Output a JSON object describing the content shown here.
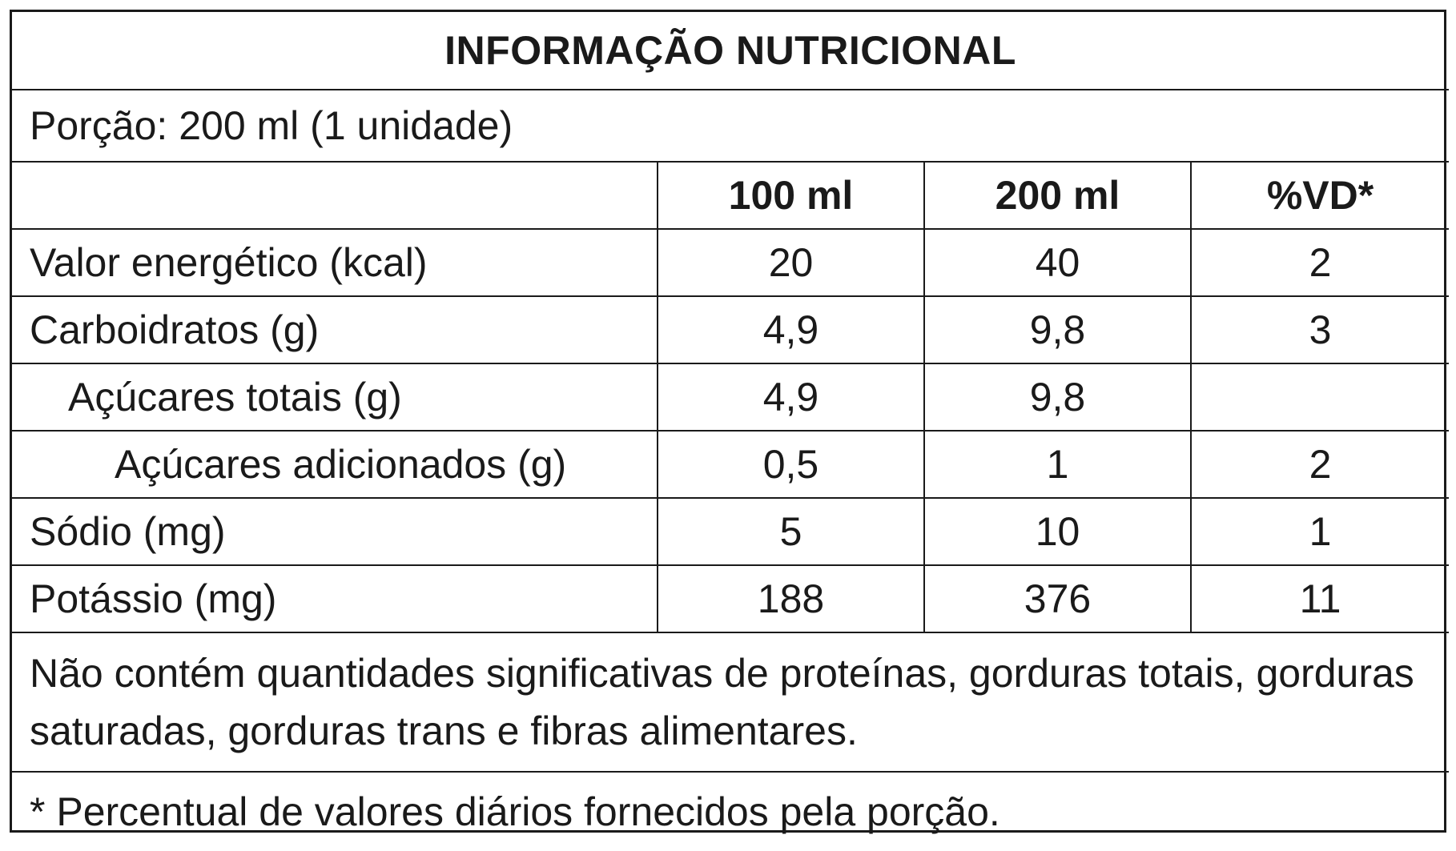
{
  "label": {
    "title": "INFORMAÇÃO NUTRICIONAL",
    "portion": "Porção: 200 ml (1 unidade)",
    "columns": [
      "",
      "100 ml",
      "200 ml",
      "%VD*"
    ],
    "rows": [
      {
        "name": "Valor energético (kcal)",
        "v100": "20",
        "v200": "40",
        "vd": "2"
      },
      {
        "name": "Carboidratos (g)",
        "v100": "4,9",
        "v200": "9,8",
        "vd": "3"
      },
      {
        "name": "Açúcares totais (g)",
        "v100": "4,9",
        "v200": "9,8",
        "vd": ""
      },
      {
        "name": "Açúcares adicionados (g)",
        "v100": "0,5",
        "v200": "1",
        "vd": "2"
      },
      {
        "name": "Sódio (mg)",
        "v100": "5",
        "v200": "10",
        "vd": "1"
      },
      {
        "name": "Potássio (mg)",
        "v100": "188",
        "v200": "376",
        "vd": "11"
      }
    ],
    "note": "Não contém quantidades significativas de proteínas, gorduras totais, gorduras saturadas, gorduras trans e fibras alimentares.",
    "footnote": "* Percentual de valores diários fornecidos pela porção."
  }
}
